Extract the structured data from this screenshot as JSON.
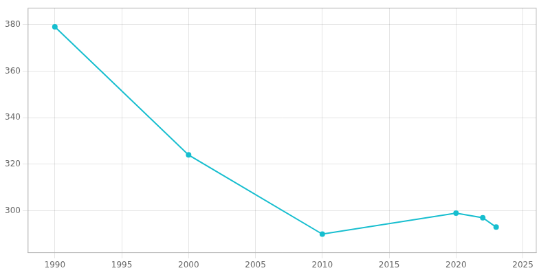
{
  "chart_data": {
    "type": "line",
    "x": [
      1990,
      2000,
      2010,
      2020,
      2022,
      2023
    ],
    "values": [
      379,
      324,
      290,
      299,
      297,
      293
    ],
    "color": "#17BECF",
    "marker": "circle",
    "xlim": [
      1988,
      2026
    ],
    "ylim": [
      282,
      387
    ],
    "xticks": [
      1990,
      1995,
      2000,
      2005,
      2010,
      2015,
      2020,
      2025
    ],
    "yticks": [
      300,
      320,
      340,
      360,
      380
    ],
    "grid": true
  }
}
